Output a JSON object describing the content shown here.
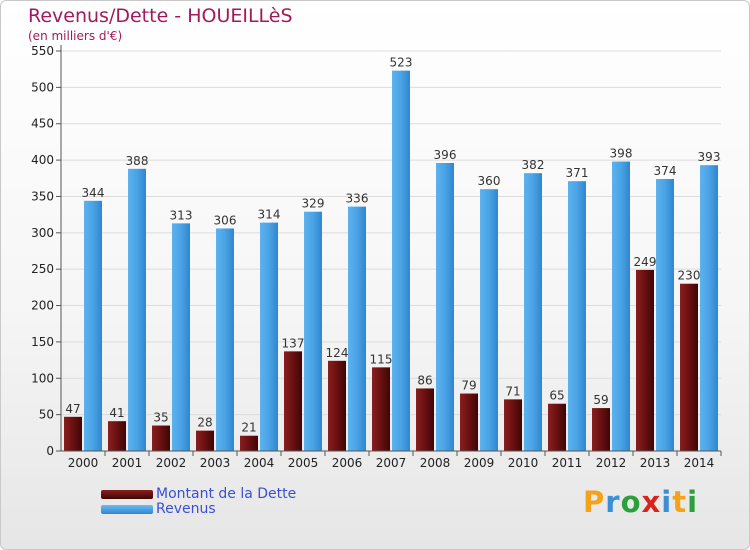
{
  "chart_data": {
    "type": "bar",
    "title": "Revenus/Dette - HOUEILLèS",
    "subtitle": "(en milliers d'€)",
    "categories": [
      "2000",
      "2001",
      "2002",
      "2003",
      "2004",
      "2005",
      "2006",
      "2007",
      "2008",
      "2009",
      "2010",
      "2011",
      "2012",
      "2013",
      "2014"
    ],
    "series": [
      {
        "name": "Montant de la Dette",
        "values": [
          47,
          41,
          35,
          28,
          21,
          137,
          124,
          115,
          86,
          79,
          71,
          65,
          59,
          249,
          230
        ],
        "color": "#6e1414"
      },
      {
        "name": "Revenus",
        "values": [
          344,
          388,
          313,
          306,
          314,
          329,
          336,
          523,
          396,
          360,
          382,
          371,
          398,
          374,
          393
        ],
        "color": "#4aa3e6"
      }
    ],
    "ylim": [
      0,
      550
    ],
    "yticks": [
      0,
      50,
      100,
      150,
      200,
      250,
      300,
      350,
      400,
      450,
      500,
      550
    ],
    "grid": true,
    "legend_position": "bottom-left"
  },
  "legend": {
    "debt_label": "Montant de la Dette",
    "revenue_label": "Revenus"
  },
  "logo": {
    "letters": [
      "P",
      "r",
      "o",
      "x",
      "i",
      "t",
      "i"
    ],
    "colors": [
      "#f2a21b",
      "#3a8fd6",
      "#2a9f3c",
      "#d8251c",
      "#3a8fd6",
      "#f2a21b",
      "#2a9f3c"
    ]
  }
}
